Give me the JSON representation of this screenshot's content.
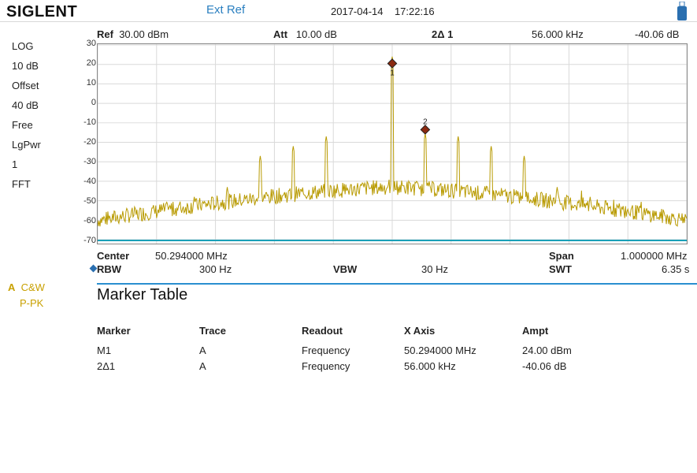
{
  "header": {
    "brand": "SIGLENT",
    "ref_source": "Ext Ref",
    "date": "2017-04-14",
    "time": "17:22:16",
    "ref_label": "Ref",
    "ref_value": "30.00 dBm",
    "att_label": "Att",
    "att_value": "10.00 dB",
    "marker_label": "2Δ 1",
    "marker_x": "56.000 kHz",
    "marker_y": "-40.06 dB"
  },
  "side_panel": [
    "LOG",
    "10 dB",
    "Offset",
    "40 dB",
    "Free",
    "LgPwr",
    "1",
    "FFT"
  ],
  "trace": {
    "letter": "A",
    "mode1": "C&W",
    "mode2": "P-PK"
  },
  "y_ticks": [
    "30",
    "20",
    "10",
    "0",
    "-10",
    "-20",
    "-30",
    "-40",
    "-50",
    "-60",
    "-70"
  ],
  "bottom": {
    "center_label": "Center",
    "center_value": "50.294000 MHz",
    "span_label": "Span",
    "span_value": "1.000000 MHz",
    "rbw_label": "RBW",
    "rbw_value": "300 Hz",
    "vbw_label": "VBW",
    "vbw_value": "30 Hz",
    "swt_label": "SWT",
    "swt_value": "6.35 s"
  },
  "marker_table": {
    "title": "Marker Table",
    "headers": [
      "Marker",
      "Trace",
      "Readout",
      "X Axis",
      "Ampt"
    ],
    "rows": [
      [
        "M1",
        "A",
        "Frequency",
        "50.294000 MHz",
        "24.00 dBm"
      ],
      [
        "2Δ1",
        "A",
        "Frequency",
        "56.000 kHz",
        "-40.06 dB"
      ]
    ]
  },
  "chart_data": {
    "type": "line",
    "ylim": [
      -70,
      30
    ],
    "x_center_mhz": 50.294,
    "x_span_mhz": 1.0,
    "trace_color": "#b89a00",
    "marker_color": "#8b2a10",
    "grid": true,
    "peaks": [
      {
        "offset_khz": -336,
        "dbm": -48
      },
      {
        "offset_khz": -280,
        "dbm": -43
      },
      {
        "offset_khz": -224,
        "dbm": -27
      },
      {
        "offset_khz": -168,
        "dbm": -22
      },
      {
        "offset_khz": -112,
        "dbm": -17
      },
      {
        "offset_khz": 0,
        "dbm": 24
      },
      {
        "offset_khz": 56,
        "dbm": -15.5
      },
      {
        "offset_khz": 112,
        "dbm": -17
      },
      {
        "offset_khz": 168,
        "dbm": -22
      },
      {
        "offset_khz": 224,
        "dbm": -27
      },
      {
        "offset_khz": 280,
        "dbm": -43
      },
      {
        "offset_khz": 336,
        "dbm": -48
      }
    ],
    "floor_edge_dbm": -60,
    "floor_center_dbm": -43,
    "markers": [
      {
        "label": "1",
        "offset_khz": 0,
        "dbm": 20.5
      },
      {
        "label": "2",
        "offset_khz": 56,
        "dbm": -13.5
      }
    ]
  }
}
